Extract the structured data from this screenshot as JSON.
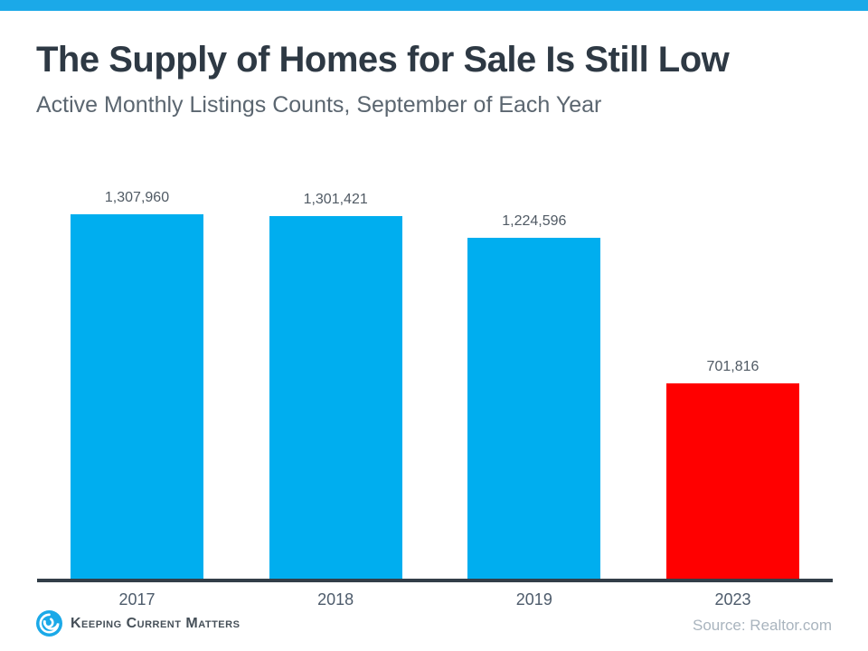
{
  "header": {
    "title": "The Supply of Homes for Sale Is Still Low",
    "subtitle": "Active Monthly Listings Counts, September of Each Year"
  },
  "chart_data": {
    "type": "bar",
    "title": "The Supply of Homes for Sale Is Still Low",
    "subtitle": "Active Monthly Listings Counts, September of Each Year",
    "categories": [
      "2017",
      "2018",
      "2019",
      "2023"
    ],
    "values": [
      1307960,
      1301421,
      1224596,
      701816
    ],
    "value_labels": [
      "1,307,960",
      "1,301,421",
      "1,224,596",
      "701,816"
    ],
    "bar_colors": [
      "#00AEEF",
      "#00AEEF",
      "#00AEEF",
      "#FF0000"
    ],
    "xlabel": "",
    "ylabel": "",
    "ylim": [
      0,
      1400000
    ],
    "grid": false,
    "legend": false,
    "y_axis_visible": false,
    "baseline_axis_color": "#333E48"
  },
  "footer": {
    "logo_text": "Keeping Current Matters",
    "source": "Source: Realtor.com"
  },
  "colors": {
    "top_bar": "#1BA9E8",
    "bar_blue": "#00AEEF",
    "bar_red": "#FF0000",
    "axis": "#333E48",
    "title_text": "#2E3944",
    "subtitle_text": "#5B6670",
    "value_label_text": "#505A64",
    "tick_text": "#4D5B6B",
    "logo_blue": "#1BA9E8",
    "source_text": "#A9B4BE"
  }
}
